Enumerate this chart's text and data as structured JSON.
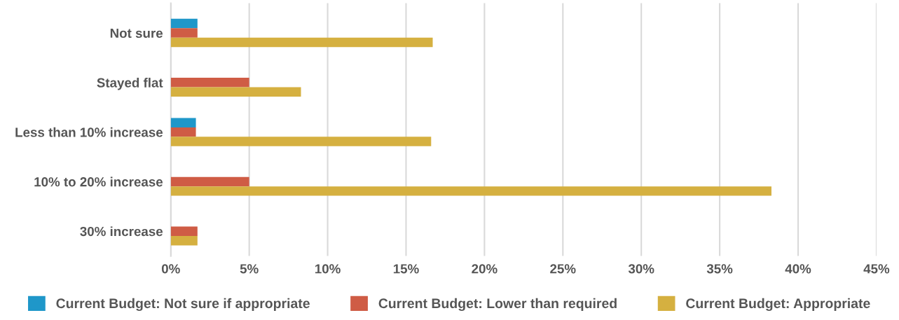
{
  "chart_data": {
    "type": "bar",
    "orientation": "horizontal",
    "categories": [
      "Not sure",
      "Stayed flat",
      "Less than 10% increase",
      "10% to 20% increase",
      "30% increase"
    ],
    "series": [
      {
        "name": "Current Budget: Not sure if appropriate",
        "color": "#1f97c9",
        "values": [
          1.7,
          null,
          1.6,
          null,
          null
        ]
      },
      {
        "name": "Current Budget: Lower than required",
        "color": "#cf5c45",
        "values": [
          1.7,
          5.0,
          1.6,
          5.0,
          1.7
        ]
      },
      {
        "name": "Current Budget: Appropriate",
        "color": "#d5b040",
        "values": [
          16.7,
          8.3,
          16.6,
          38.3,
          1.7
        ]
      }
    ],
    "xlim": [
      0,
      45
    ],
    "xticks": [
      {
        "value": 0,
        "label": "0%"
      },
      {
        "value": 5,
        "label": "5%"
      },
      {
        "value": 10,
        "label": "10%"
      },
      {
        "value": 15,
        "label": "15%"
      },
      {
        "value": 20,
        "label": "20%"
      },
      {
        "value": 25,
        "label": "25%"
      },
      {
        "value": 30,
        "label": "30%"
      },
      {
        "value": 35,
        "label": "35%"
      },
      {
        "value": 40,
        "label": "40%"
      },
      {
        "value": 45,
        "label": "45%"
      }
    ],
    "grid": "x",
    "legend": "bottom"
  }
}
